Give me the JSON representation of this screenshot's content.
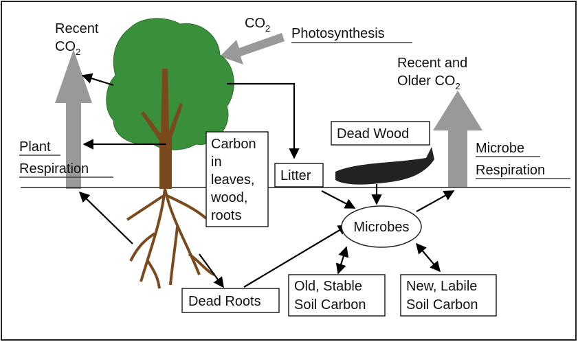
{
  "labels": {
    "co2_top": {
      "main": "CO",
      "sub": "2"
    },
    "photosynthesis": "Photosynthesis",
    "recent_co2": {
      "line1": "Recent",
      "main": "CO",
      "sub": "2"
    },
    "recent_older_co2": {
      "line1": "Recent and",
      "main": "Older CO",
      "sub": "2"
    },
    "plant_respiration": [
      "Plant",
      "Respiration"
    ],
    "microbe_respiration": [
      "Microbe",
      "Respiration"
    ],
    "carbon_box": [
      "Carbon",
      "in",
      "leaves,",
      "wood,",
      "roots"
    ],
    "litter": "Litter",
    "dead_wood": "Dead Wood",
    "microbes": "Microbes",
    "dead_roots": "Dead Roots",
    "old_stable": [
      "Old, Stable",
      "Soil Carbon"
    ],
    "new_labile": [
      "New, Labile",
      "Soil Carbon"
    ]
  }
}
